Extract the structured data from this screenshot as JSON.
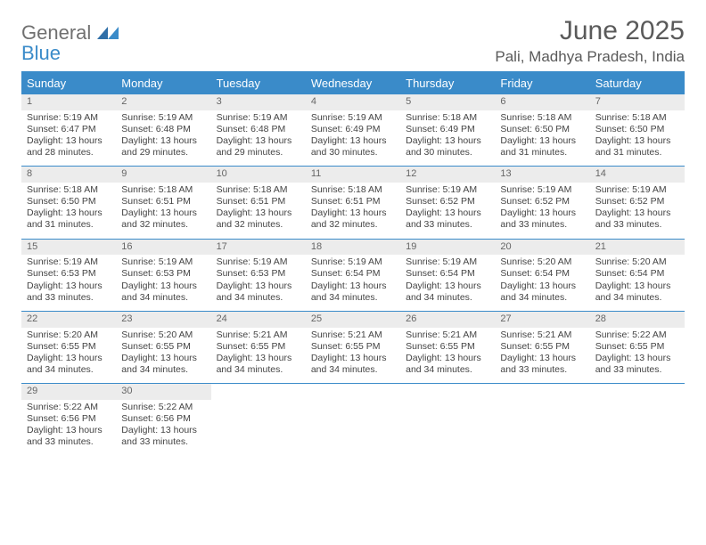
{
  "brand": {
    "word1": "General",
    "word2": "Blue"
  },
  "title": "June 2025",
  "location": "Pali, Madhya Pradesh, India",
  "colors": {
    "accent": "#3a8bc9",
    "text": "#5a5a5a",
    "daynum_bg": "#ececec",
    "rule": "#3a8bc9"
  },
  "weekdays": [
    "Sunday",
    "Monday",
    "Tuesday",
    "Wednesday",
    "Thursday",
    "Friday",
    "Saturday"
  ],
  "weeks": [
    [
      {
        "n": "1",
        "sr": "Sunrise: 5:19 AM",
        "ss": "Sunset: 6:47 PM",
        "dl": "Daylight: 13 hours and 28 minutes."
      },
      {
        "n": "2",
        "sr": "Sunrise: 5:19 AM",
        "ss": "Sunset: 6:48 PM",
        "dl": "Daylight: 13 hours and 29 minutes."
      },
      {
        "n": "3",
        "sr": "Sunrise: 5:19 AM",
        "ss": "Sunset: 6:48 PM",
        "dl": "Daylight: 13 hours and 29 minutes."
      },
      {
        "n": "4",
        "sr": "Sunrise: 5:19 AM",
        "ss": "Sunset: 6:49 PM",
        "dl": "Daylight: 13 hours and 30 minutes."
      },
      {
        "n": "5",
        "sr": "Sunrise: 5:18 AM",
        "ss": "Sunset: 6:49 PM",
        "dl": "Daylight: 13 hours and 30 minutes."
      },
      {
        "n": "6",
        "sr": "Sunrise: 5:18 AM",
        "ss": "Sunset: 6:50 PM",
        "dl": "Daylight: 13 hours and 31 minutes."
      },
      {
        "n": "7",
        "sr": "Sunrise: 5:18 AM",
        "ss": "Sunset: 6:50 PM",
        "dl": "Daylight: 13 hours and 31 minutes."
      }
    ],
    [
      {
        "n": "8",
        "sr": "Sunrise: 5:18 AM",
        "ss": "Sunset: 6:50 PM",
        "dl": "Daylight: 13 hours and 31 minutes."
      },
      {
        "n": "9",
        "sr": "Sunrise: 5:18 AM",
        "ss": "Sunset: 6:51 PM",
        "dl": "Daylight: 13 hours and 32 minutes."
      },
      {
        "n": "10",
        "sr": "Sunrise: 5:18 AM",
        "ss": "Sunset: 6:51 PM",
        "dl": "Daylight: 13 hours and 32 minutes."
      },
      {
        "n": "11",
        "sr": "Sunrise: 5:18 AM",
        "ss": "Sunset: 6:51 PM",
        "dl": "Daylight: 13 hours and 32 minutes."
      },
      {
        "n": "12",
        "sr": "Sunrise: 5:19 AM",
        "ss": "Sunset: 6:52 PM",
        "dl": "Daylight: 13 hours and 33 minutes."
      },
      {
        "n": "13",
        "sr": "Sunrise: 5:19 AM",
        "ss": "Sunset: 6:52 PM",
        "dl": "Daylight: 13 hours and 33 minutes."
      },
      {
        "n": "14",
        "sr": "Sunrise: 5:19 AM",
        "ss": "Sunset: 6:52 PM",
        "dl": "Daylight: 13 hours and 33 minutes."
      }
    ],
    [
      {
        "n": "15",
        "sr": "Sunrise: 5:19 AM",
        "ss": "Sunset: 6:53 PM",
        "dl": "Daylight: 13 hours and 33 minutes."
      },
      {
        "n": "16",
        "sr": "Sunrise: 5:19 AM",
        "ss": "Sunset: 6:53 PM",
        "dl": "Daylight: 13 hours and 34 minutes."
      },
      {
        "n": "17",
        "sr": "Sunrise: 5:19 AM",
        "ss": "Sunset: 6:53 PM",
        "dl": "Daylight: 13 hours and 34 minutes."
      },
      {
        "n": "18",
        "sr": "Sunrise: 5:19 AM",
        "ss": "Sunset: 6:54 PM",
        "dl": "Daylight: 13 hours and 34 minutes."
      },
      {
        "n": "19",
        "sr": "Sunrise: 5:19 AM",
        "ss": "Sunset: 6:54 PM",
        "dl": "Daylight: 13 hours and 34 minutes."
      },
      {
        "n": "20",
        "sr": "Sunrise: 5:20 AM",
        "ss": "Sunset: 6:54 PM",
        "dl": "Daylight: 13 hours and 34 minutes."
      },
      {
        "n": "21",
        "sr": "Sunrise: 5:20 AM",
        "ss": "Sunset: 6:54 PM",
        "dl": "Daylight: 13 hours and 34 minutes."
      }
    ],
    [
      {
        "n": "22",
        "sr": "Sunrise: 5:20 AM",
        "ss": "Sunset: 6:55 PM",
        "dl": "Daylight: 13 hours and 34 minutes."
      },
      {
        "n": "23",
        "sr": "Sunrise: 5:20 AM",
        "ss": "Sunset: 6:55 PM",
        "dl": "Daylight: 13 hours and 34 minutes."
      },
      {
        "n": "24",
        "sr": "Sunrise: 5:21 AM",
        "ss": "Sunset: 6:55 PM",
        "dl": "Daylight: 13 hours and 34 minutes."
      },
      {
        "n": "25",
        "sr": "Sunrise: 5:21 AM",
        "ss": "Sunset: 6:55 PM",
        "dl": "Daylight: 13 hours and 34 minutes."
      },
      {
        "n": "26",
        "sr": "Sunrise: 5:21 AM",
        "ss": "Sunset: 6:55 PM",
        "dl": "Daylight: 13 hours and 34 minutes."
      },
      {
        "n": "27",
        "sr": "Sunrise: 5:21 AM",
        "ss": "Sunset: 6:55 PM",
        "dl": "Daylight: 13 hours and 33 minutes."
      },
      {
        "n": "28",
        "sr": "Sunrise: 5:22 AM",
        "ss": "Sunset: 6:55 PM",
        "dl": "Daylight: 13 hours and 33 minutes."
      }
    ],
    [
      {
        "n": "29",
        "sr": "Sunrise: 5:22 AM",
        "ss": "Sunset: 6:56 PM",
        "dl": "Daylight: 13 hours and 33 minutes."
      },
      {
        "n": "30",
        "sr": "Sunrise: 5:22 AM",
        "ss": "Sunset: 6:56 PM",
        "dl": "Daylight: 13 hours and 33 minutes."
      },
      {
        "empty": true
      },
      {
        "empty": true
      },
      {
        "empty": true
      },
      {
        "empty": true
      },
      {
        "empty": true
      }
    ]
  ]
}
